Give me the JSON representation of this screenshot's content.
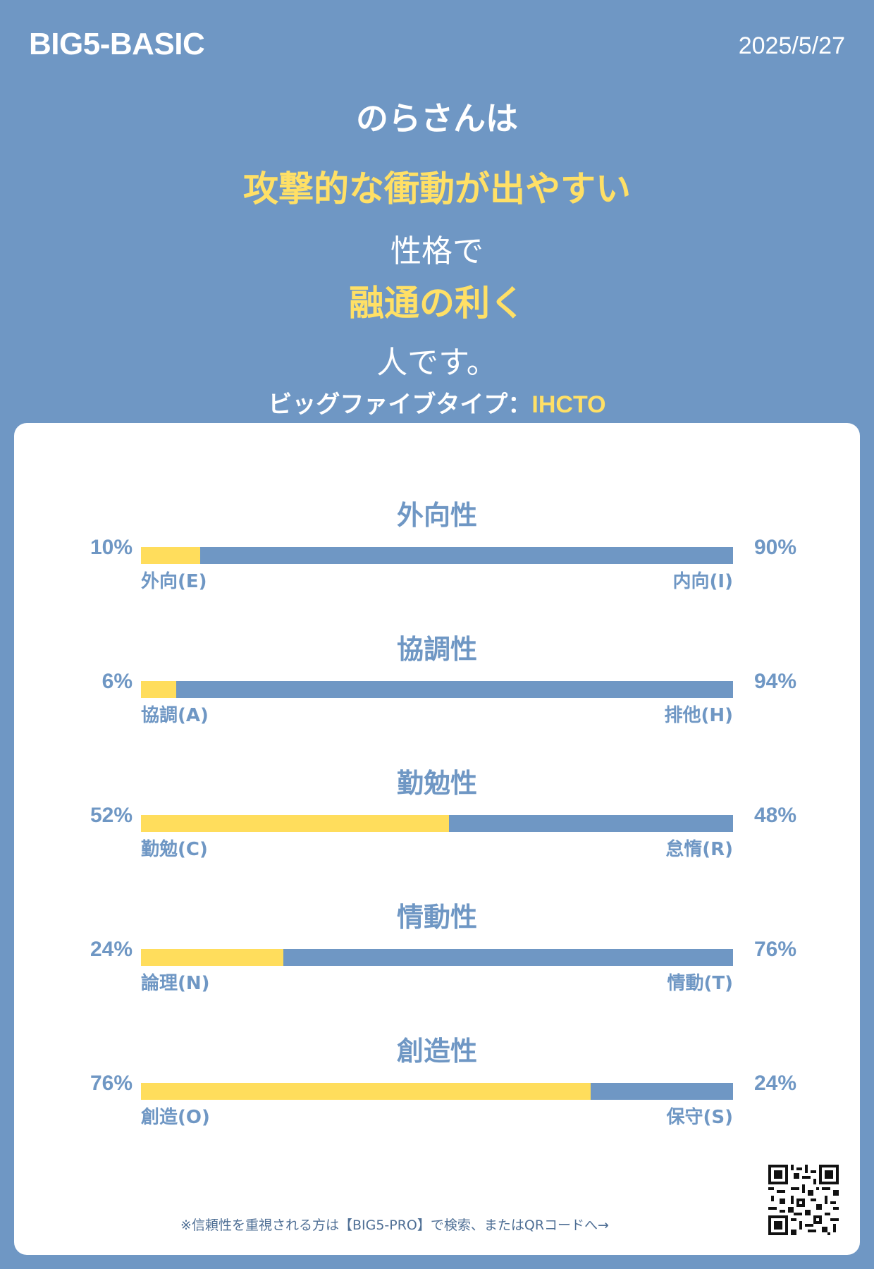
{
  "header": {
    "brand": "BIG5-BASIC",
    "date": "2025/5/27"
  },
  "headline": {
    "line1": "のらさんは",
    "line2": "攻撃的な衝動が出やすい",
    "line3": "性格で",
    "line4": "融通の利く",
    "line5": "人です。",
    "type_label": "ビッグファイブタイプ：",
    "type_code": "IHCTO"
  },
  "colors": {
    "background": "#6f97c4",
    "accent": "#ffdd5c",
    "card": "#ffffff"
  },
  "traits": [
    {
      "title": "外向性",
      "left_pct": "10%",
      "right_pct": "90%",
      "left_value": 10,
      "left_label": "外向(E)",
      "right_label": "内向(I)"
    },
    {
      "title": "協調性",
      "left_pct": "6%",
      "right_pct": "94%",
      "left_value": 6,
      "left_label": "協調(A)",
      "right_label": "排他(H)"
    },
    {
      "title": "勤勉性",
      "left_pct": "52%",
      "right_pct": "48%",
      "left_value": 52,
      "left_label": "勤勉(C)",
      "right_label": "怠惰(R)"
    },
    {
      "title": "情動性",
      "left_pct": "24%",
      "right_pct": "76%",
      "left_value": 24,
      "left_label": "論理(N)",
      "right_label": "情動(T)"
    },
    {
      "title": "創造性",
      "left_pct": "76%",
      "right_pct": "24%",
      "left_value": 76,
      "left_label": "創造(O)",
      "right_label": "保守(S)"
    }
  ],
  "footer": {
    "note": "※信頼性を重視される方は【BIG5-PRO】で検索、またはQRコードへ→",
    "qr_icon": "qr-code-icon"
  }
}
